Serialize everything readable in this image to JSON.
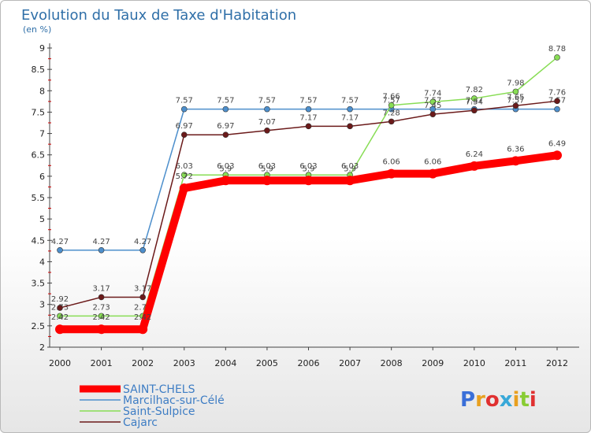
{
  "chart_data": {
    "type": "line",
    "title": "Evolution du Taux de Taxe d'Habitation",
    "subtitle": "(en %)",
    "x": [
      "2000",
      "2001",
      "2002",
      "2003",
      "2004",
      "2005",
      "2006",
      "2007",
      "2008",
      "2009",
      "2010",
      "2011",
      "2012"
    ],
    "ylim": [
      2,
      9
    ],
    "yticks": [
      "2",
      "2.5",
      "3",
      "3.5",
      "4",
      "4.5",
      "5",
      "5.5",
      "6",
      "6.5",
      "7",
      "7.5",
      "8",
      "8.5",
      "9"
    ],
    "grid": false,
    "series": [
      {
        "name": "SAINT-CHELS",
        "color": "#ff0000",
        "values": [
          2.42,
          2.42,
          2.42,
          5.72,
          5.9,
          5.9,
          5.9,
          5.9,
          6.06,
          6.06,
          6.24,
          6.36,
          6.49
        ],
        "labels": [
          "2.42",
          "2.42",
          "2.42",
          "5.72",
          "5.9",
          "5.9",
          "5.9",
          "5.9",
          "6.06",
          "6.06",
          "6.24",
          "6.36",
          "6.49"
        ]
      },
      {
        "name": "Marcilhac-sur-Célé",
        "color": "#4d8fcc",
        "values": [
          4.27,
          4.27,
          4.27,
          7.57,
          7.57,
          7.57,
          7.57,
          7.57,
          7.57,
          7.57,
          7.57,
          7.57,
          7.57
        ],
        "labels": [
          "4.27",
          "4.27",
          "4.27",
          "7.57",
          "7.57",
          "7.57",
          "7.57",
          "7.57",
          "7.57",
          "7.57",
          "7.57",
          "7.57",
          "7.57"
        ]
      },
      {
        "name": "Saint-Sulpice",
        "color": "#88dd55",
        "values": [
          2.73,
          2.73,
          2.73,
          6.03,
          6.03,
          6.03,
          6.03,
          6.03,
          7.66,
          7.74,
          7.82,
          7.98,
          8.78
        ],
        "labels": [
          "2.73",
          "2.73",
          "2.73",
          "6.03",
          "6.03",
          "6.03",
          "6.03",
          "6.03",
          "7.66",
          "7.74",
          "7.82",
          "7.98",
          "8.78"
        ]
      },
      {
        "name": "Cajarc",
        "color": "#6b1a1a",
        "values": [
          2.92,
          3.17,
          3.17,
          6.97,
          6.97,
          7.07,
          7.17,
          7.17,
          7.28,
          7.45,
          7.54,
          7.65,
          7.76
        ],
        "labels": [
          "2.92",
          "3.17",
          "3.17",
          "6.97",
          "6.97",
          "7.07",
          "7.17",
          "7.17",
          "7.28",
          "7.45",
          "7.54",
          "7.65",
          "7.76"
        ]
      }
    ],
    "legend_position": "bottom-left"
  },
  "logo": {
    "text": "Proxiti",
    "letter_colors": [
      "#3a6fd8",
      "#e8a020",
      "#e03030",
      "#38a8d8",
      "#e8a020",
      "#88cc33",
      "#e03030"
    ]
  }
}
